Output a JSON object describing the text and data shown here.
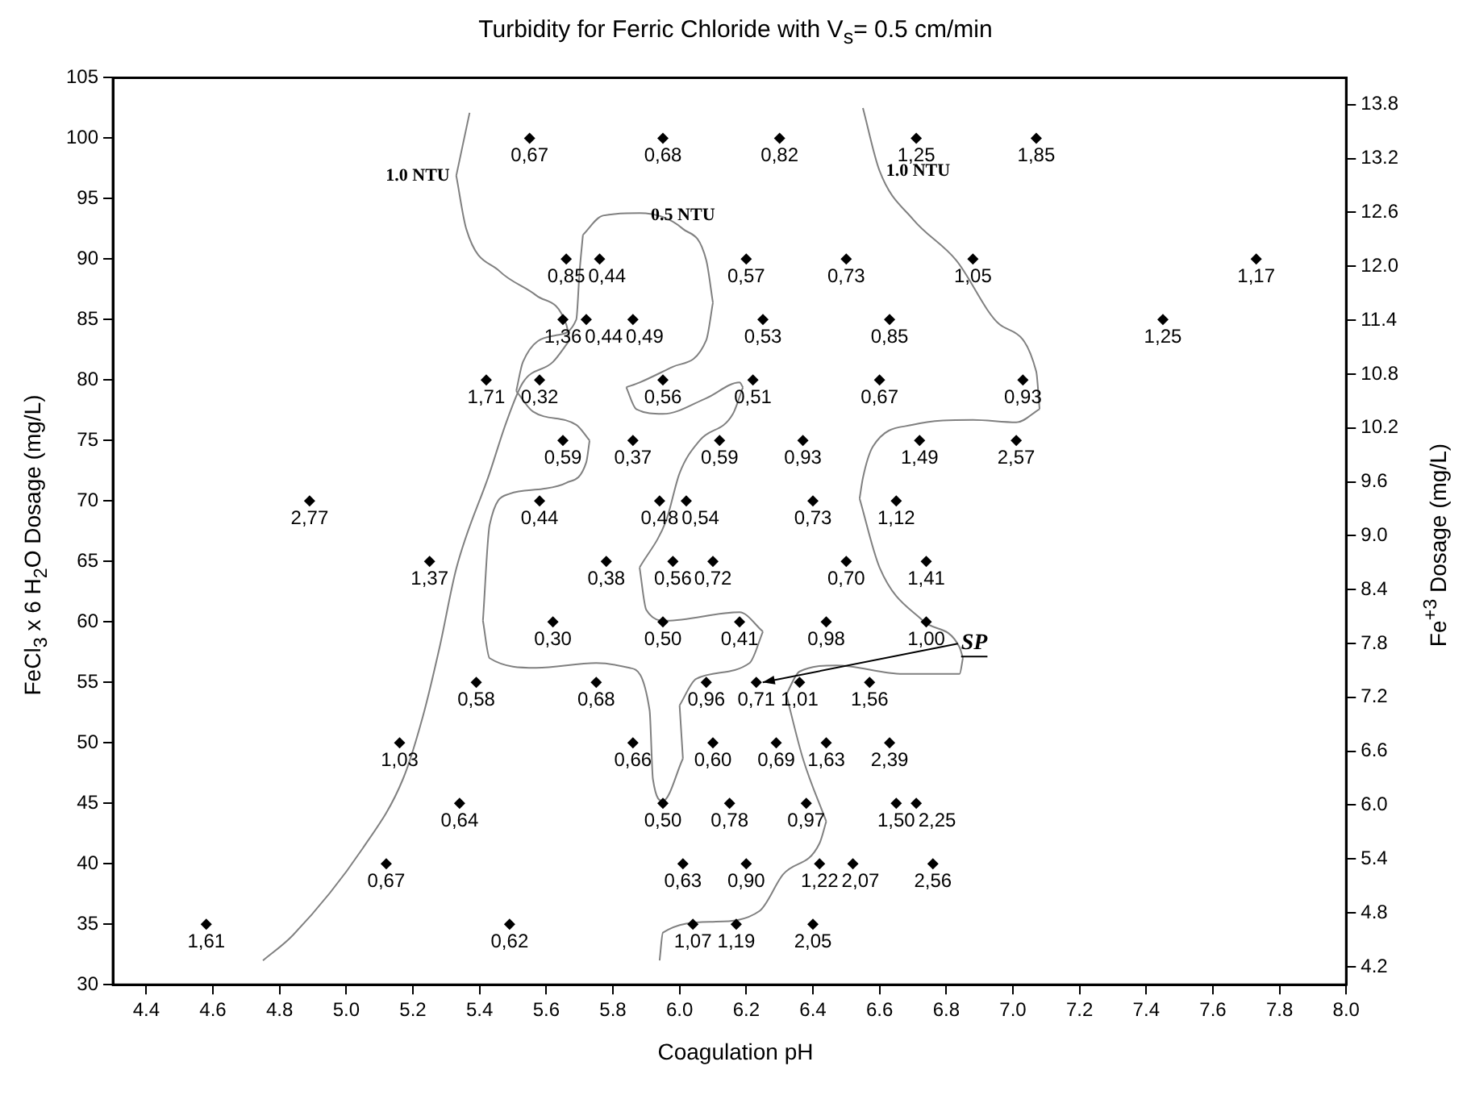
{
  "chart_data": {
    "type": "scatter",
    "title": "Turbidity for Ferric Chloride with V$_{s}$= 0.5 cm/min",
    "xlabel": "Coagulation pH",
    "ylabel": "FeCl$_{3}$ x 6 H$_{2}$O Dosage (mg/L)",
    "y2label": "Fe$^{+3}$ Dosage (mg/L)",
    "xlim": [
      4.3,
      8.0
    ],
    "xticks": [
      4.4,
      4.6,
      4.8,
      {
        "value": 5,
        "label": "5.0"
      },
      5.2,
      5.4,
      5.6,
      5.8,
      {
        "value": 6,
        "label": "6.0"
      },
      6.2,
      6.4,
      6.6,
      6.8,
      {
        "value": 7,
        "label": "7.0"
      },
      7.2,
      7.4,
      7.6,
      7.8,
      {
        "value": 8,
        "label": "8.0"
      }
    ],
    "ylim": [
      30,
      105
    ],
    "yticks": [
      30,
      35,
      40,
      45,
      50,
      55,
      60,
      65,
      70,
      75,
      80,
      85,
      90,
      95,
      100,
      105
    ],
    "y2lim": [
      4.0,
      14.1
    ],
    "y2ticks": [
      4.2,
      4.8,
      5.4,
      {
        "value": 6,
        "label": "6.0"
      },
      6.6,
      7.2,
      7.8,
      8.4,
      {
        "value": 9,
        "label": "9.0"
      },
      9.6,
      10.2,
      10.8,
      11.4,
      {
        "value": 12,
        "label": "12.0"
      },
      12.6,
      13.2,
      13.8
    ],
    "grid": false,
    "legend": false,
    "series": [
      {
        "type": "scatter",
        "marker": "diamond",
        "color": "#000000",
        "x": [
          5.55,
          5.95,
          6.3,
          6.71,
          7.07,
          5.66,
          5.76,
          6.2,
          6.5,
          6.88,
          7.73,
          5.65,
          5.72,
          5.86,
          6.25,
          6.63,
          7.45,
          5.42,
          5.58,
          5.95,
          6.22,
          6.6,
          7.03,
          5.65,
          5.86,
          6.12,
          6.37,
          6.72,
          7.01,
          4.89,
          5.58,
          5.94,
          6.02,
          6.4,
          6.65,
          5.25,
          5.78,
          5.98,
          6.1,
          6.5,
          6.74,
          5.62,
          5.95,
          6.18,
          6.44,
          6.74,
          5.39,
          5.75,
          6.08,
          6.23,
          6.36,
          6.57,
          5.16,
          5.86,
          6.1,
          6.29,
          6.44,
          6.63,
          5.34,
          5.95,
          6.15,
          6.38,
          6.65,
          6.71,
          5.12,
          6.01,
          6.2,
          6.42,
          6.52,
          6.76,
          4.58,
          5.49,
          6.04,
          6.17,
          6.4
        ],
        "values": [
          100,
          100,
          100,
          100,
          100,
          90,
          90,
          90,
          90,
          90,
          90,
          85,
          85,
          85,
          85,
          85,
          85,
          80,
          80,
          80,
          80,
          80,
          80,
          75,
          75,
          75,
          75,
          75,
          75,
          70,
          70,
          70,
          70,
          70,
          70,
          65,
          65,
          65,
          65,
          65,
          65,
          60,
          60,
          60,
          60,
          60,
          55,
          55,
          55,
          55,
          55,
          55,
          50,
          50,
          50,
          50,
          50,
          50,
          45,
          45,
          45,
          45,
          45,
          45,
          40,
          40,
          40,
          40,
          40,
          40,
          35,
          35,
          35,
          35,
          35
        ]
      },
      {
        "type": "line",
        "color": "#808080",
        "x": [
          5.33,
          5.37
        ],
        "values": [
          96.9,
          102.1
        ]
      },
      {
        "type": "line",
        "color": "#808080",
        "x": [
          5.33,
          5.36,
          5.46,
          5.57,
          5.66,
          5.67
        ],
        "values": [
          96.9,
          92.5,
          89.0,
          87.0,
          84.6,
          83.3
        ]
      },
      {
        "type": "line",
        "color": "#808080",
        "x": [
          4.75,
          4.84,
          5.05,
          5.17,
          5.23,
          5.28,
          5.33,
          5.43,
          5.48,
          5.53,
          5.62,
          5.67
        ],
        "values": [
          32.0,
          34.1,
          41.3,
          47.0,
          52.2,
          57.9,
          64.4,
          72.3,
          76.5,
          79.8,
          81.5,
          83.3
        ]
      },
      {
        "type": "line",
        "color": "#808080",
        "x": [
          5.71,
          5.77,
          5.88,
          6.01,
          6.08,
          6.1
        ],
        "values": [
          92.0,
          93.6,
          93.8,
          92.5,
          89.9,
          86.4
        ]
      },
      {
        "type": "line",
        "color": "#808080",
        "x": [
          5.84,
          5.88,
          5.98,
          6.08,
          6.1
        ],
        "values": [
          79.4,
          79.8,
          81.1,
          83.3,
          86.4
        ]
      },
      {
        "type": "line",
        "color": "#808080",
        "x": [
          5.84,
          5.87,
          5.95,
          6.08,
          6.18,
          6.19
        ],
        "values": [
          79.4,
          77.6,
          77.2,
          78.5,
          79.8,
          79.4
        ]
      },
      {
        "type": "line",
        "color": "#808080",
        "x": [
          5.88,
          5.96,
          6.0,
          6.06,
          6.16,
          6.19
        ],
        "values": [
          64.5,
          68.4,
          72.3,
          75.0,
          77.2,
          79.4
        ]
      },
      {
        "type": "line",
        "color": "#808080",
        "x": [
          5.88,
          5.9,
          5.96,
          6.18,
          6.25
        ],
        "values": [
          64.5,
          61.0,
          60.1,
          60.8,
          59.2
        ]
      },
      {
        "type": "line",
        "color": "#808080",
        "x": [
          6.0,
          6.05,
          6.21,
          6.25
        ],
        "values": [
          53.1,
          55.3,
          56.6,
          59.2
        ]
      },
      {
        "type": "line",
        "color": "#808080",
        "x": [
          6.0,
          6.01
        ],
        "values": [
          53.1,
          48.7
        ]
      },
      {
        "type": "line",
        "color": "#808080",
        "x": [
          5.41,
          5.43,
          5.57,
          5.75,
          5.85,
          5.91,
          5.92,
          5.95,
          6.01
        ],
        "values": [
          60.1,
          57.0,
          56.2,
          56.6,
          56.2,
          52.7,
          47.0,
          45.2,
          48.7
        ]
      },
      {
        "type": "line",
        "color": "#808080",
        "x": [
          5.41,
          5.43,
          5.49,
          5.59,
          5.66,
          5.72,
          5.73
        ],
        "values": [
          60.1,
          68.0,
          70.6,
          71.0,
          71.5,
          73.2,
          75.0
        ]
      },
      {
        "type": "line",
        "color": "#808080",
        "x": [
          5.51,
          5.56,
          5.69,
          5.73
        ],
        "values": [
          79.1,
          77.4,
          76.3,
          75.0
        ]
      },
      {
        "type": "line",
        "color": "#808080",
        "x": [
          5.51,
          5.53,
          5.63,
          5.69,
          5.7,
          5.71
        ],
        "values": [
          79.1,
          81.5,
          83.7,
          85.0,
          89.0,
          92.0
        ]
      },
      {
        "type": "line",
        "color": "#808080",
        "x": [
          6.55,
          6.6,
          6.7,
          6.83,
          6.96,
          7.07,
          7.08
        ],
        "values": [
          102.5,
          97.3,
          93.3,
          89.9,
          84.6,
          80.7,
          77.6
        ]
      },
      {
        "type": "line",
        "color": "#808080",
        "x": [
          6.54,
          6.55,
          6.58,
          6.7,
          6.88,
          7.01,
          7.08
        ],
        "values": [
          70.2,
          71.9,
          74.5,
          76.3,
          76.7,
          76.5,
          77.6
        ]
      },
      {
        "type": "line",
        "color": "#808080",
        "x": [
          6.54,
          6.6,
          6.73,
          6.84,
          6.85
        ],
        "values": [
          70.2,
          64.5,
          60.1,
          57.9,
          57.0
        ]
      },
      {
        "type": "line",
        "color": "#808080",
        "x": [
          6.32,
          6.36,
          6.47,
          6.67,
          6.84,
          6.85
        ],
        "values": [
          54.0,
          55.9,
          56.4,
          55.7,
          55.7,
          57.0
        ]
      },
      {
        "type": "line",
        "color": "#808080",
        "x": [
          6.32,
          6.37,
          6.44
        ],
        "values": [
          54.0,
          48.7,
          43.5
        ]
      },
      {
        "type": "line",
        "color": "#808080",
        "x": [
          5.94,
          5.95,
          6.1,
          6.24,
          6.31,
          6.42,
          6.44
        ],
        "values": [
          32.0,
          34.3,
          35.2,
          36.1,
          39.1,
          41.7,
          43.5
        ]
      }
    ],
    "annotations": [
      {
        "text": "0,67",
        "x": 5.55,
        "y": 100
      },
      {
        "text": "0,68",
        "x": 5.95,
        "y": 100
      },
      {
        "text": "0,82",
        "x": 6.3,
        "y": 100
      },
      {
        "text": "1,25",
        "x": 6.71,
        "y": 100
      },
      {
        "text": "1,85",
        "x": 7.07,
        "y": 100
      },
      {
        "text": "0,85",
        "x": 5.66,
        "y": 90
      },
      {
        "text": "0,44",
        "x": 5.76,
        "y": 90
      },
      {
        "text": "0,57",
        "x": 6.2,
        "y": 90
      },
      {
        "text": "0,73",
        "x": 6.5,
        "y": 90
      },
      {
        "text": "1,05",
        "x": 6.88,
        "y": 90
      },
      {
        "text": "1,17",
        "x": 7.73,
        "y": 90
      },
      {
        "text": "1,36",
        "x": 5.65,
        "y": 85
      },
      {
        "text": "0,44",
        "x": 5.72,
        "y": 85
      },
      {
        "text": "0,49",
        "x": 5.86,
        "y": 85
      },
      {
        "text": "0,53",
        "x": 6.25,
        "y": 85
      },
      {
        "text": "0,85",
        "x": 6.63,
        "y": 85
      },
      {
        "text": "1,25",
        "x": 7.45,
        "y": 85
      },
      {
        "text": "1,71",
        "x": 5.42,
        "y": 80
      },
      {
        "text": "0,32",
        "x": 5.58,
        "y": 80
      },
      {
        "text": "0,56",
        "x": 5.95,
        "y": 80
      },
      {
        "text": "0,51",
        "x": 6.22,
        "y": 80
      },
      {
        "text": "0,67",
        "x": 6.6,
        "y": 80
      },
      {
        "text": "0,93",
        "x": 7.03,
        "y": 80
      },
      {
        "text": "0,59",
        "x": 5.65,
        "y": 75
      },
      {
        "text": "0,37",
        "x": 5.86,
        "y": 75
      },
      {
        "text": "0,59",
        "x": 6.12,
        "y": 75
      },
      {
        "text": "0,93",
        "x": 6.37,
        "y": 75
      },
      {
        "text": "1,49",
        "x": 6.72,
        "y": 75
      },
      {
        "text": "2,57",
        "x": 7.01,
        "y": 75
      },
      {
        "text": "2,77",
        "x": 4.89,
        "y": 70
      },
      {
        "text": "0,44",
        "x": 5.58,
        "y": 70
      },
      {
        "text": "0,48",
        "x": 5.94,
        "y": 70
      },
      {
        "text": "0,54",
        "x": 6.02,
        "y": 70
      },
      {
        "text": "0,73",
        "x": 6.4,
        "y": 70
      },
      {
        "text": "1,12",
        "x": 6.65,
        "y": 70
      },
      {
        "text": "1,37",
        "x": 5.25,
        "y": 65
      },
      {
        "text": "0,38",
        "x": 5.78,
        "y": 65
      },
      {
        "text": "0,56",
        "x": 5.98,
        "y": 65
      },
      {
        "text": "0,72",
        "x": 6.1,
        "y": 65
      },
      {
        "text": "0,70",
        "x": 6.5,
        "y": 65
      },
      {
        "text": "1,41",
        "x": 6.74,
        "y": 65
      },
      {
        "text": "0,30",
        "x": 5.62,
        "y": 60
      },
      {
        "text": "0,50",
        "x": 5.95,
        "y": 60
      },
      {
        "text": "0,41",
        "x": 6.18,
        "y": 60
      },
      {
        "text": "0,98",
        "x": 6.44,
        "y": 60
      },
      {
        "text": "1,00",
        "x": 6.74,
        "y": 60
      },
      {
        "text": "0,58",
        "x": 5.39,
        "y": 55
      },
      {
        "text": "0,68",
        "x": 5.75,
        "y": 55
      },
      {
        "text": "0,96",
        "x": 6.08,
        "y": 55
      },
      {
        "text": "0,71",
        "x": 6.23,
        "y": 55
      },
      {
        "text": "1,01",
        "x": 6.36,
        "y": 55
      },
      {
        "text": "1,56",
        "x": 6.57,
        "y": 55
      },
      {
        "text": "1,03",
        "x": 5.16,
        "y": 50
      },
      {
        "text": "0,66",
        "x": 5.86,
        "y": 50
      },
      {
        "text": "0,60",
        "x": 6.1,
        "y": 50
      },
      {
        "text": "0,69",
        "x": 6.29,
        "y": 50
      },
      {
        "text": "1,63",
        "x": 6.44,
        "y": 50
      },
      {
        "text": "2,39",
        "x": 6.63,
        "y": 50
      },
      {
        "text": "0,64",
        "x": 5.34,
        "y": 45
      },
      {
        "text": "0,50",
        "x": 5.95,
        "y": 45
      },
      {
        "text": "0,78",
        "x": 6.15,
        "y": 45
      },
      {
        "text": "0,97",
        "x": 6.38,
        "y": 45
      },
      {
        "text": "1,50",
        "x": 6.65,
        "y": 45
      },
      {
        "text": "2,25",
        "x": 6.71,
        "y": 45
      },
      {
        "text": "0,67",
        "x": 5.12,
        "y": 40
      },
      {
        "text": "0,63",
        "x": 6.01,
        "y": 40
      },
      {
        "text": "0,90",
        "x": 6.2,
        "y": 40
      },
      {
        "text": "1,22",
        "x": 6.42,
        "y": 40
      },
      {
        "text": "2,07",
        "x": 6.52,
        "y": 40
      },
      {
        "text": "2,56",
        "x": 6.76,
        "y": 40
      },
      {
        "text": "1,61",
        "x": 4.58,
        "y": 35
      },
      {
        "text": "0,62",
        "x": 5.49,
        "y": 35
      },
      {
        "text": "1,07",
        "x": 6.04,
        "y": 35
      },
      {
        "text": "1,19",
        "x": 6.17,
        "y": 35
      },
      {
        "text": "2,05",
        "x": 6.4,
        "y": 35
      },
      {
        "text": "1.0 NTU",
        "x": 5.33,
        "y": 96.9
      },
      {
        "text": "0.5 NTU",
        "x": 6.01,
        "y": 92.5
      },
      {
        "text": "1.0 NTU",
        "x": 6.6,
        "y": 97.3
      },
      {
        "text": "SP",
        "x": 6.23,
        "y": 55
      }
    ]
  }
}
